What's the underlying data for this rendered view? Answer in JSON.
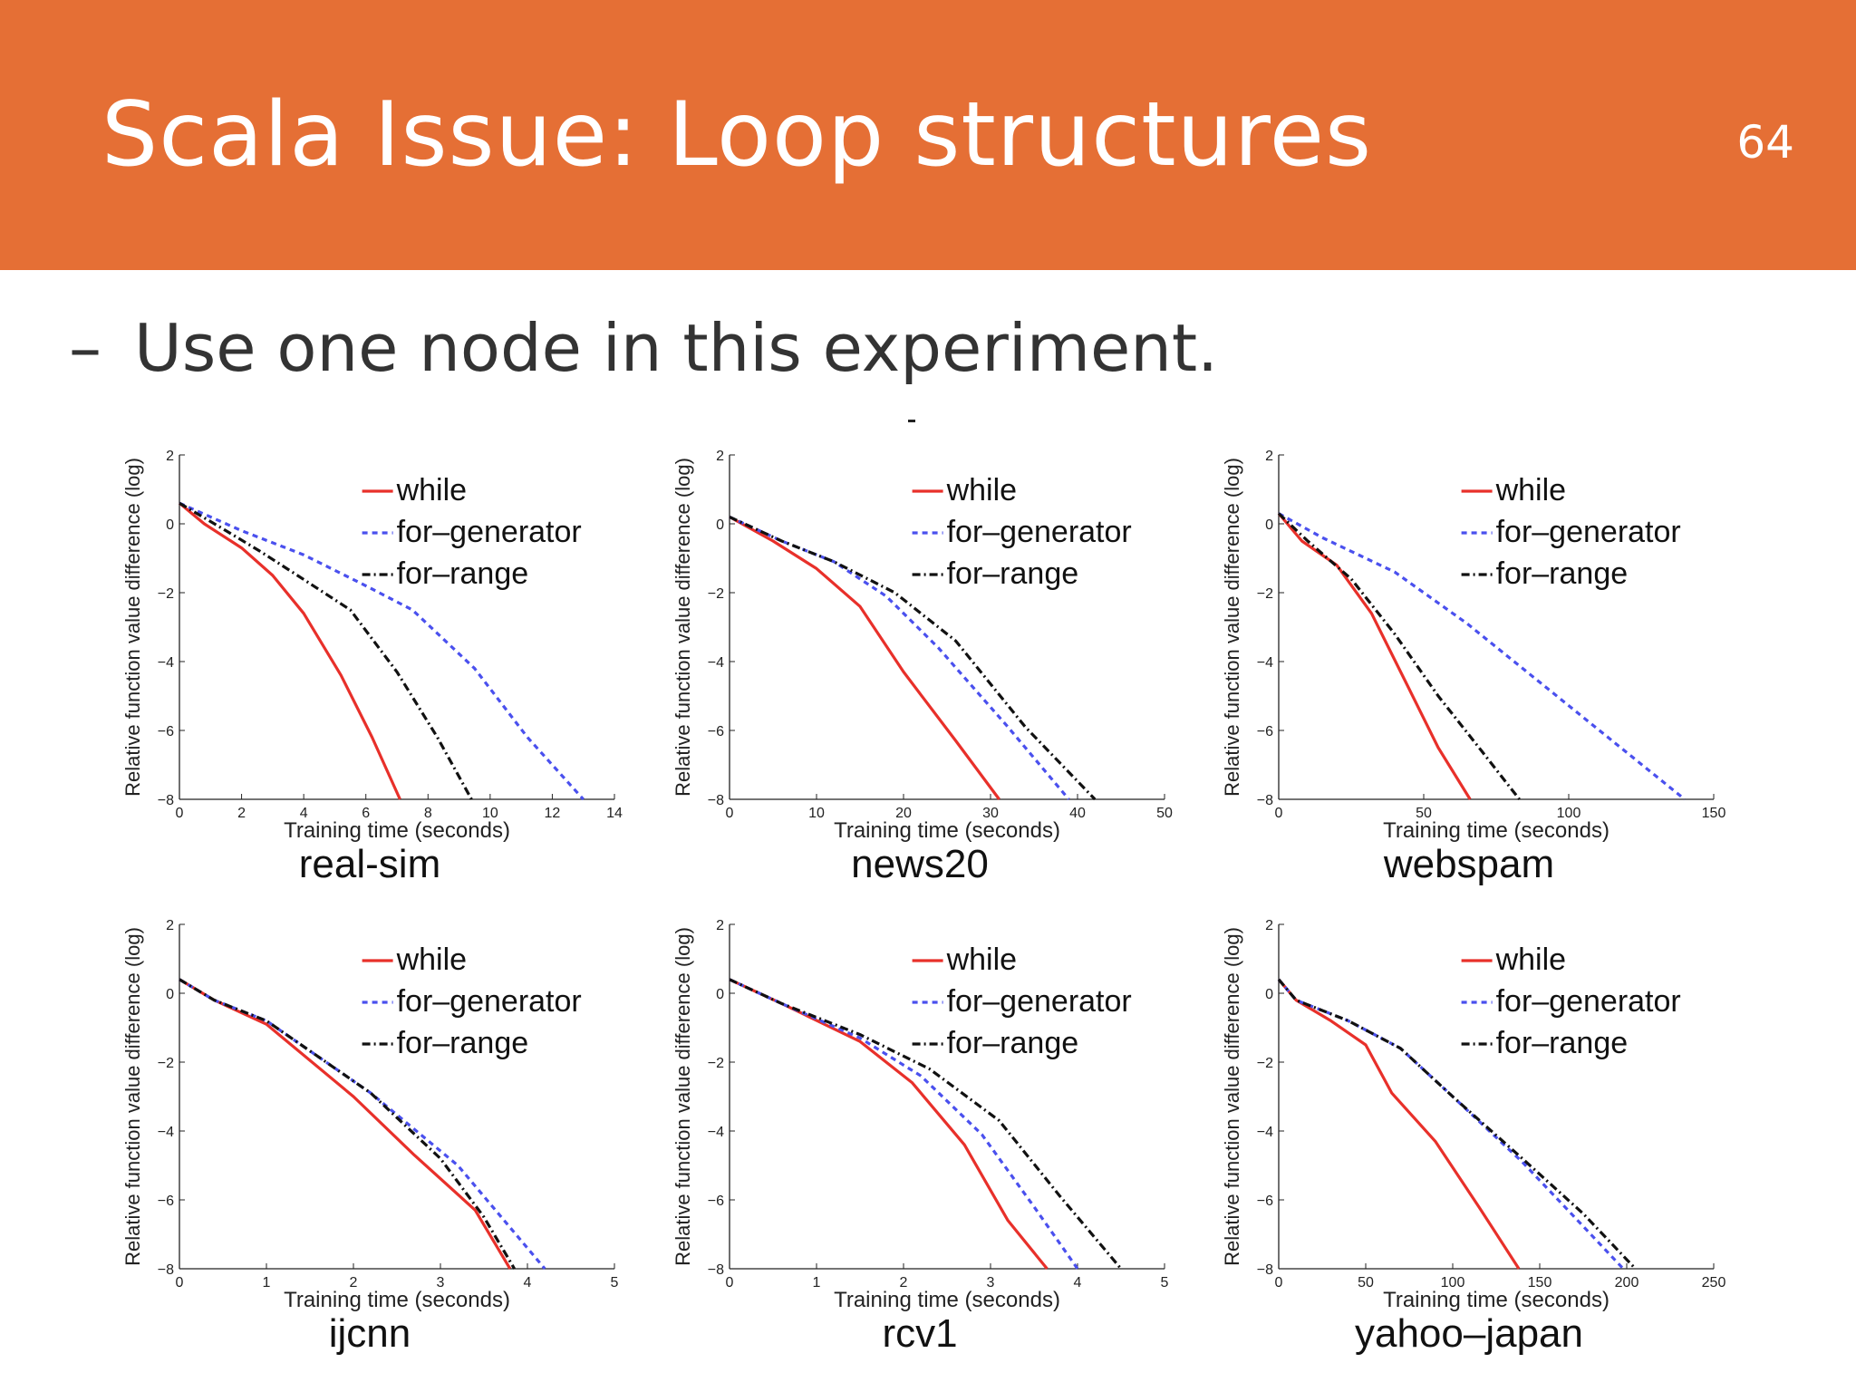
{
  "slide": {
    "title": "Scala Issue: Loop structures",
    "page_number": "64",
    "bullet_marker": "–",
    "bullet_text": "Use one node in this experiment.",
    "colors": {
      "header": "#e56f35",
      "while": "#e8302a",
      "for_generator": "#4a50ee",
      "for_range": "#111111"
    }
  },
  "chart_data": [
    {
      "type": "line",
      "name": "real-sim",
      "title": "real-sim",
      "xlabel": "Training time (seconds)",
      "ylabel": "Relative function value difference (log)",
      "xlim": [
        0,
        14
      ],
      "ylim": [
        -8,
        2
      ],
      "xticks": [
        0,
        2,
        4,
        6,
        8,
        10,
        12,
        14
      ],
      "yticks": [
        -8,
        -6,
        -4,
        -2,
        0,
        2
      ],
      "legend_position": "top-right",
      "series": [
        {
          "name": "while",
          "style": "solid",
          "x": [
            0,
            0.8,
            2,
            3,
            4,
            5.2,
            6.2,
            7.1
          ],
          "y": [
            0.6,
            0,
            -0.7,
            -1.5,
            -2.6,
            -4.4,
            -6.2,
            -8
          ]
        },
        {
          "name": "for-generator",
          "style": "dotted",
          "x": [
            0,
            2,
            4,
            6,
            7.5,
            9.5,
            11.2,
            13
          ],
          "y": [
            0.6,
            -0.2,
            -0.9,
            -1.8,
            -2.5,
            -4.2,
            -6.2,
            -8
          ]
        },
        {
          "name": "for-range",
          "style": "dashdot",
          "x": [
            0,
            1.5,
            2.6,
            3.8,
            5.5,
            7,
            8.3,
            9.4
          ],
          "y": [
            0.6,
            -0.2,
            -0.8,
            -1.5,
            -2.5,
            -4.3,
            -6.2,
            -8
          ]
        }
      ]
    },
    {
      "type": "line",
      "name": "news20",
      "title": "news20",
      "xlabel": "Training time (seconds)",
      "ylabel": "Relative function value difference (log)",
      "xlim": [
        0,
        50
      ],
      "ylim": [
        -8,
        2
      ],
      "xticks": [
        0,
        10,
        20,
        30,
        40,
        50
      ],
      "yticks": [
        -8,
        -6,
        -4,
        -2,
        0,
        2
      ],
      "legend_position": "top-right",
      "series": [
        {
          "name": "while",
          "style": "solid",
          "x": [
            0,
            5,
            10,
            15,
            20,
            26,
            31
          ],
          "y": [
            0.2,
            -0.5,
            -1.3,
            -2.4,
            -4.3,
            -6.3,
            -8
          ]
        },
        {
          "name": "for-generator",
          "style": "dotted",
          "x": [
            0,
            6,
            12,
            18,
            24,
            32,
            39
          ],
          "y": [
            0.2,
            -0.5,
            -1.1,
            -2.1,
            -3.6,
            -5.9,
            -8
          ]
        },
        {
          "name": "for-range",
          "style": "dashdot",
          "x": [
            0,
            6,
            12,
            19,
            26,
            34,
            42
          ],
          "y": [
            0.2,
            -0.5,
            -1.1,
            -2.0,
            -3.4,
            -5.9,
            -8
          ]
        }
      ]
    },
    {
      "type": "line",
      "name": "webspam",
      "title": "webspam",
      "xlabel": "Training time (seconds)",
      "ylabel": "Relative function value difference (log)",
      "xlim": [
        0,
        150
      ],
      "ylim": [
        -8,
        2
      ],
      "xticks": [
        0,
        50,
        100,
        150
      ],
      "yticks": [
        -8,
        -6,
        -4,
        -2,
        0,
        2
      ],
      "legend_position": "top-right",
      "series": [
        {
          "name": "while",
          "style": "solid",
          "x": [
            0,
            8,
            20,
            32,
            45,
            55,
            66
          ],
          "y": [
            0.3,
            -0.5,
            -1.2,
            -2.6,
            -4.8,
            -6.5,
            -8
          ]
        },
        {
          "name": "for-generator",
          "style": "dotted",
          "x": [
            0,
            15,
            40,
            65,
            90,
            115,
            140
          ],
          "y": [
            0.3,
            -0.4,
            -1.4,
            -2.9,
            -4.6,
            -6.3,
            -8
          ]
        },
        {
          "name": "for-range",
          "style": "dashdot",
          "x": [
            0,
            10,
            25,
            40,
            55,
            70,
            83
          ],
          "y": [
            0.3,
            -0.5,
            -1.6,
            -3.2,
            -5.0,
            -6.6,
            -8
          ]
        }
      ]
    },
    {
      "type": "line",
      "name": "ijcnn",
      "title": "ijcnn",
      "xlabel": "Training time (seconds)",
      "ylabel": "Relative function value difference (log)",
      "xlim": [
        0,
        5
      ],
      "ylim": [
        -8,
        2
      ],
      "xticks": [
        0,
        1,
        2,
        3,
        4,
        5
      ],
      "yticks": [
        -8,
        -6,
        -4,
        -2,
        0,
        2
      ],
      "legend_position": "top-right",
      "series": [
        {
          "name": "while",
          "style": "solid",
          "x": [
            0,
            0.4,
            1,
            2,
            2.7,
            3.4,
            3.8
          ],
          "y": [
            0.4,
            -0.2,
            -0.9,
            -3.0,
            -4.7,
            -6.3,
            -8
          ]
        },
        {
          "name": "for-generator",
          "style": "dotted",
          "x": [
            0,
            0.4,
            1,
            2.2,
            3.2,
            3.8,
            4.2
          ],
          "y": [
            0.4,
            -0.2,
            -0.8,
            -2.9,
            -5.0,
            -6.8,
            -8
          ]
        },
        {
          "name": "for-range",
          "style": "dashdot",
          "x": [
            0,
            0.4,
            1,
            2.2,
            3.0,
            3.5,
            3.85
          ],
          "y": [
            0.4,
            -0.2,
            -0.8,
            -2.9,
            -4.8,
            -6.5,
            -8
          ]
        }
      ]
    },
    {
      "type": "line",
      "name": "rcv1",
      "title": "rcv1",
      "xlabel": "Training time (seconds)",
      "ylabel": "Relative function value difference (log)",
      "xlim": [
        0,
        5
      ],
      "ylim": [
        -8,
        2
      ],
      "xticks": [
        0,
        1,
        2,
        3,
        4,
        5
      ],
      "yticks": [
        -8,
        -6,
        -4,
        -2,
        0,
        2
      ],
      "legend_position": "top-right",
      "series": [
        {
          "name": "while",
          "style": "solid",
          "x": [
            0,
            0.6,
            1.5,
            2.1,
            2.7,
            3.2,
            3.65
          ],
          "y": [
            0.4,
            -0.3,
            -1.4,
            -2.6,
            -4.4,
            -6.6,
            -8
          ]
        },
        {
          "name": "for-generator",
          "style": "dotted",
          "x": [
            0,
            0.6,
            1.5,
            2.2,
            2.9,
            3.5,
            4.0
          ],
          "y": [
            0.4,
            -0.3,
            -1.3,
            -2.4,
            -4.1,
            -6.2,
            -8
          ]
        },
        {
          "name": "for-range",
          "style": "dashdot",
          "x": [
            0,
            0.6,
            1.5,
            2.3,
            3.1,
            3.8,
            4.5
          ],
          "y": [
            0.4,
            -0.3,
            -1.2,
            -2.2,
            -3.7,
            -5.9,
            -8
          ]
        }
      ]
    },
    {
      "type": "line",
      "name": "yahoo-japan",
      "title": "yahoo–japan",
      "xlabel": "Training time (seconds)",
      "ylabel": "Relative function value difference (log)",
      "xlim": [
        0,
        250
      ],
      "ylim": [
        -8,
        2
      ],
      "xticks": [
        0,
        50,
        100,
        150,
        200,
        250
      ],
      "yticks": [
        -8,
        -6,
        -4,
        -2,
        0,
        2
      ],
      "legend_position": "top-right",
      "series": [
        {
          "name": "while",
          "style": "solid",
          "x": [
            0,
            10,
            30,
            50,
            65,
            90,
            115,
            138
          ],
          "y": [
            0.4,
            -0.2,
            -0.8,
            -1.5,
            -2.9,
            -4.3,
            -6.2,
            -8
          ]
        },
        {
          "name": "for-generator",
          "style": "dotted",
          "x": [
            0,
            10,
            40,
            70,
            100,
            140,
            170,
            198
          ],
          "y": [
            0.4,
            -0.2,
            -0.8,
            -1.6,
            -3.0,
            -4.9,
            -6.5,
            -8
          ]
        },
        {
          "name": "for-range",
          "style": "dashdot",
          "x": [
            0,
            10,
            40,
            70,
            100,
            140,
            175,
            205
          ],
          "y": [
            0.4,
            -0.2,
            -0.8,
            -1.6,
            -3.0,
            -4.8,
            -6.4,
            -8
          ]
        }
      ]
    }
  ]
}
